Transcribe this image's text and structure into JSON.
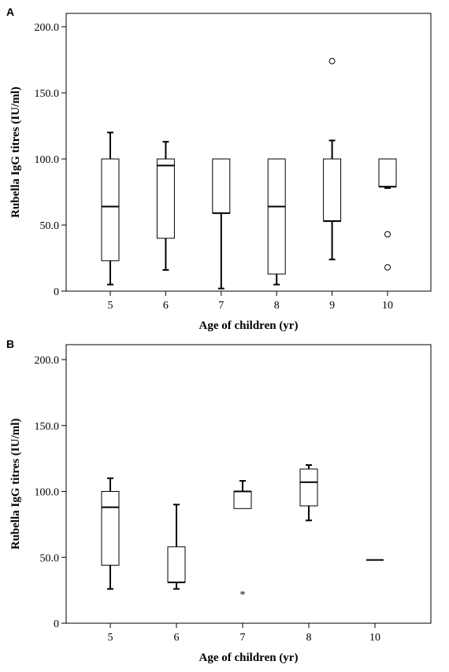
{
  "chart_data": [
    {
      "type": "boxplot",
      "panel_label": "A",
      "xlabel": "Age of children (yr)",
      "ylabel": "Rubella IgG titres (IU/ml)",
      "ylim": [
        0,
        200
      ],
      "yticks": [
        "0",
        "50.0",
        "100.0",
        "150.0",
        "200.0"
      ],
      "ytick_values": [
        0,
        50,
        100,
        150,
        200
      ],
      "categories": [
        "5",
        "6",
        "7",
        "8",
        "9",
        "10"
      ],
      "boxes": [
        {
          "min": 5,
          "q1": 23,
          "median": 64,
          "q3": 100,
          "max": 120
        },
        {
          "min": 16,
          "q1": 40,
          "median": 95,
          "q3": 100,
          "max": 113
        },
        {
          "min": 2,
          "q1": 59,
          "median": 59,
          "q3": 100,
          "max": 100
        },
        {
          "min": 5,
          "q1": 13,
          "median": 64,
          "q3": 100,
          "max": 100
        },
        {
          "min": 24,
          "q1": 53,
          "median": 53,
          "q3": 100,
          "max": 114
        },
        {
          "min": 78,
          "q1": 79,
          "median": 79,
          "q3": 100,
          "max": 100
        }
      ],
      "outliers": [
        {
          "category": "9",
          "value": 174,
          "marker": "circle"
        },
        {
          "category": "10",
          "value": 43,
          "marker": "circle"
        },
        {
          "category": "10",
          "value": 18,
          "marker": "circle"
        }
      ]
    },
    {
      "type": "boxplot",
      "panel_label": "B",
      "xlabel": "Age of children (yr)",
      "ylabel": "Rubella IgG titres (IU/ml)",
      "ylim": [
        0,
        200
      ],
      "yticks": [
        "0",
        "50.0",
        "100.0",
        "150.0",
        "200.0"
      ],
      "ytick_values": [
        0,
        50,
        100,
        150,
        200
      ],
      "categories": [
        "5",
        "6",
        "7",
        "8",
        "10"
      ],
      "boxes": [
        {
          "min": 26,
          "q1": 44,
          "median": 88,
          "q3": 100,
          "max": 110
        },
        {
          "min": 26,
          "q1": 31,
          "median": 31,
          "q3": 58,
          "max": 90
        },
        {
          "min": 87,
          "q1": 87,
          "median": 100,
          "q3": 100,
          "max": 108
        },
        {
          "min": 78,
          "q1": 89,
          "median": 107,
          "q3": 117,
          "max": 120
        },
        {
          "min": 48,
          "q1": 48,
          "median": 48,
          "q3": 48,
          "max": 48
        }
      ],
      "outliers": [
        {
          "category": "7",
          "value": 24,
          "marker": "star"
        }
      ]
    }
  ]
}
